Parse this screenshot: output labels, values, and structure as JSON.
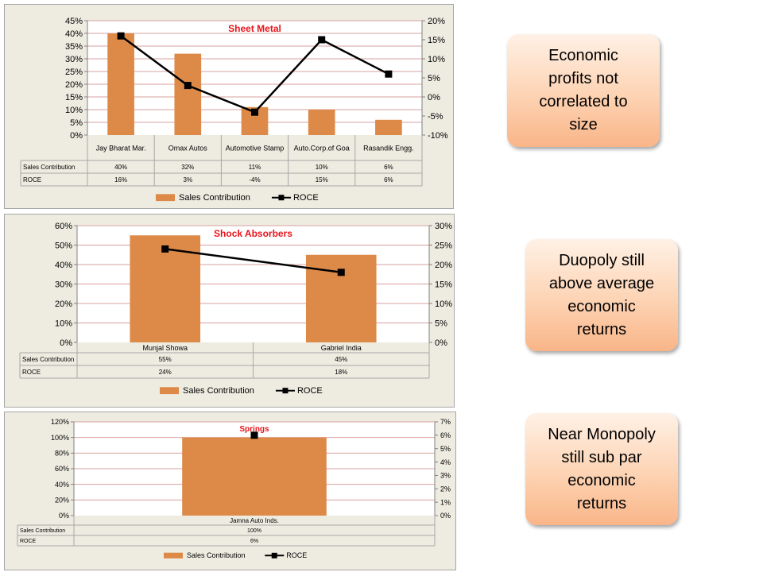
{
  "chart_data": [
    {
      "type": "bar",
      "title": "Sheet Metal",
      "categories": [
        "Jay Bharat Mar.",
        "Omax Autos",
        "Automotive Stamp",
        "Auto.Corp.of Goa",
        "Rasandik Engg."
      ],
      "series": [
        {
          "name": "Sales Contribution",
          "type": "bar",
          "axis": "left",
          "values": [
            40,
            32,
            11,
            10,
            6
          ],
          "color": "#dd8a48"
        },
        {
          "name": "ROCE",
          "type": "line",
          "axis": "right",
          "values": [
            16,
            3,
            -4,
            15,
            6
          ],
          "color": "#000000"
        }
      ],
      "table_rows": [
        {
          "label": "Sales Contribution",
          "cells": [
            "40%",
            "32%",
            "11%",
            "10%",
            "6%"
          ]
        },
        {
          "label": "ROCE",
          "cells": [
            "16%",
            "3%",
            "-4%",
            "15%",
            "6%"
          ]
        }
      ],
      "left_ticks": [
        "0%",
        "5%",
        "10%",
        "15%",
        "20%",
        "25%",
        "30%",
        "35%",
        "40%",
        "45%"
      ],
      "right_ticks": [
        "-10%",
        "-5%",
        "0%",
        "5%",
        "10%",
        "15%",
        "20%"
      ],
      "ylim_left": [
        0,
        45
      ],
      "ylim_right": [
        -10,
        20
      ],
      "legend_position": "bottom",
      "grid": true
    },
    {
      "type": "bar",
      "title": "Shock Absorbers",
      "categories": [
        "Munjal Showa",
        "Gabriel India"
      ],
      "series": [
        {
          "name": "Sales Contribution",
          "type": "bar",
          "axis": "left",
          "values": [
            55,
            45
          ],
          "color": "#dd8a48"
        },
        {
          "name": "ROCE",
          "type": "line",
          "axis": "right",
          "values": [
            24,
            18
          ],
          "color": "#000000"
        }
      ],
      "table_rows": [
        {
          "label": "Sales Contribution",
          "cells": [
            "55%",
            "45%"
          ]
        },
        {
          "label": "ROCE",
          "cells": [
            "24%",
            "18%"
          ]
        }
      ],
      "left_ticks": [
        "0%",
        "10%",
        "20%",
        "30%",
        "40%",
        "50%",
        "60%"
      ],
      "right_ticks": [
        "0%",
        "5%",
        "10%",
        "15%",
        "20%",
        "25%",
        "30%"
      ],
      "ylim_left": [
        0,
        60
      ],
      "ylim_right": [
        0,
        30
      ],
      "legend_position": "bottom",
      "grid": true
    },
    {
      "type": "bar",
      "title": "Springs",
      "categories": [
        "Jamna Auto Inds."
      ],
      "series": [
        {
          "name": "Sales Contribution",
          "type": "bar",
          "axis": "left",
          "values": [
            100
          ],
          "color": "#dd8a48"
        },
        {
          "name": "ROCE",
          "type": "line",
          "axis": "right",
          "values": [
            6
          ],
          "color": "#000000"
        }
      ],
      "table_rows": [
        {
          "label": "Sales Contribution",
          "cells": [
            "100%"
          ]
        },
        {
          "label": "ROCE",
          "cells": [
            "6%"
          ]
        }
      ],
      "left_ticks": [
        "0%",
        "20%",
        "40%",
        "60%",
        "80%",
        "100%",
        "120%"
      ],
      "right_ticks": [
        "0%",
        "1%",
        "2%",
        "3%",
        "4%",
        "5%",
        "6%",
        "7%"
      ],
      "ylim_left": [
        0,
        120
      ],
      "ylim_right": [
        0,
        7
      ],
      "legend_position": "bottom",
      "grid": true
    }
  ],
  "callouts": [
    {
      "lines": [
        "Economic",
        "profits not",
        "correlated to",
        "size"
      ]
    },
    {
      "lines": [
        "Duopoly still",
        "above average",
        "economic",
        "returns"
      ]
    },
    {
      "lines": [
        "Near Monopoly",
        "still sub par",
        "economic",
        "returns"
      ]
    }
  ],
  "colors": {
    "bar": "#dd8a48",
    "line": "#000000",
    "title": "#e8141b",
    "panel": "#eeece1",
    "grid": "#d9a0a0"
  }
}
